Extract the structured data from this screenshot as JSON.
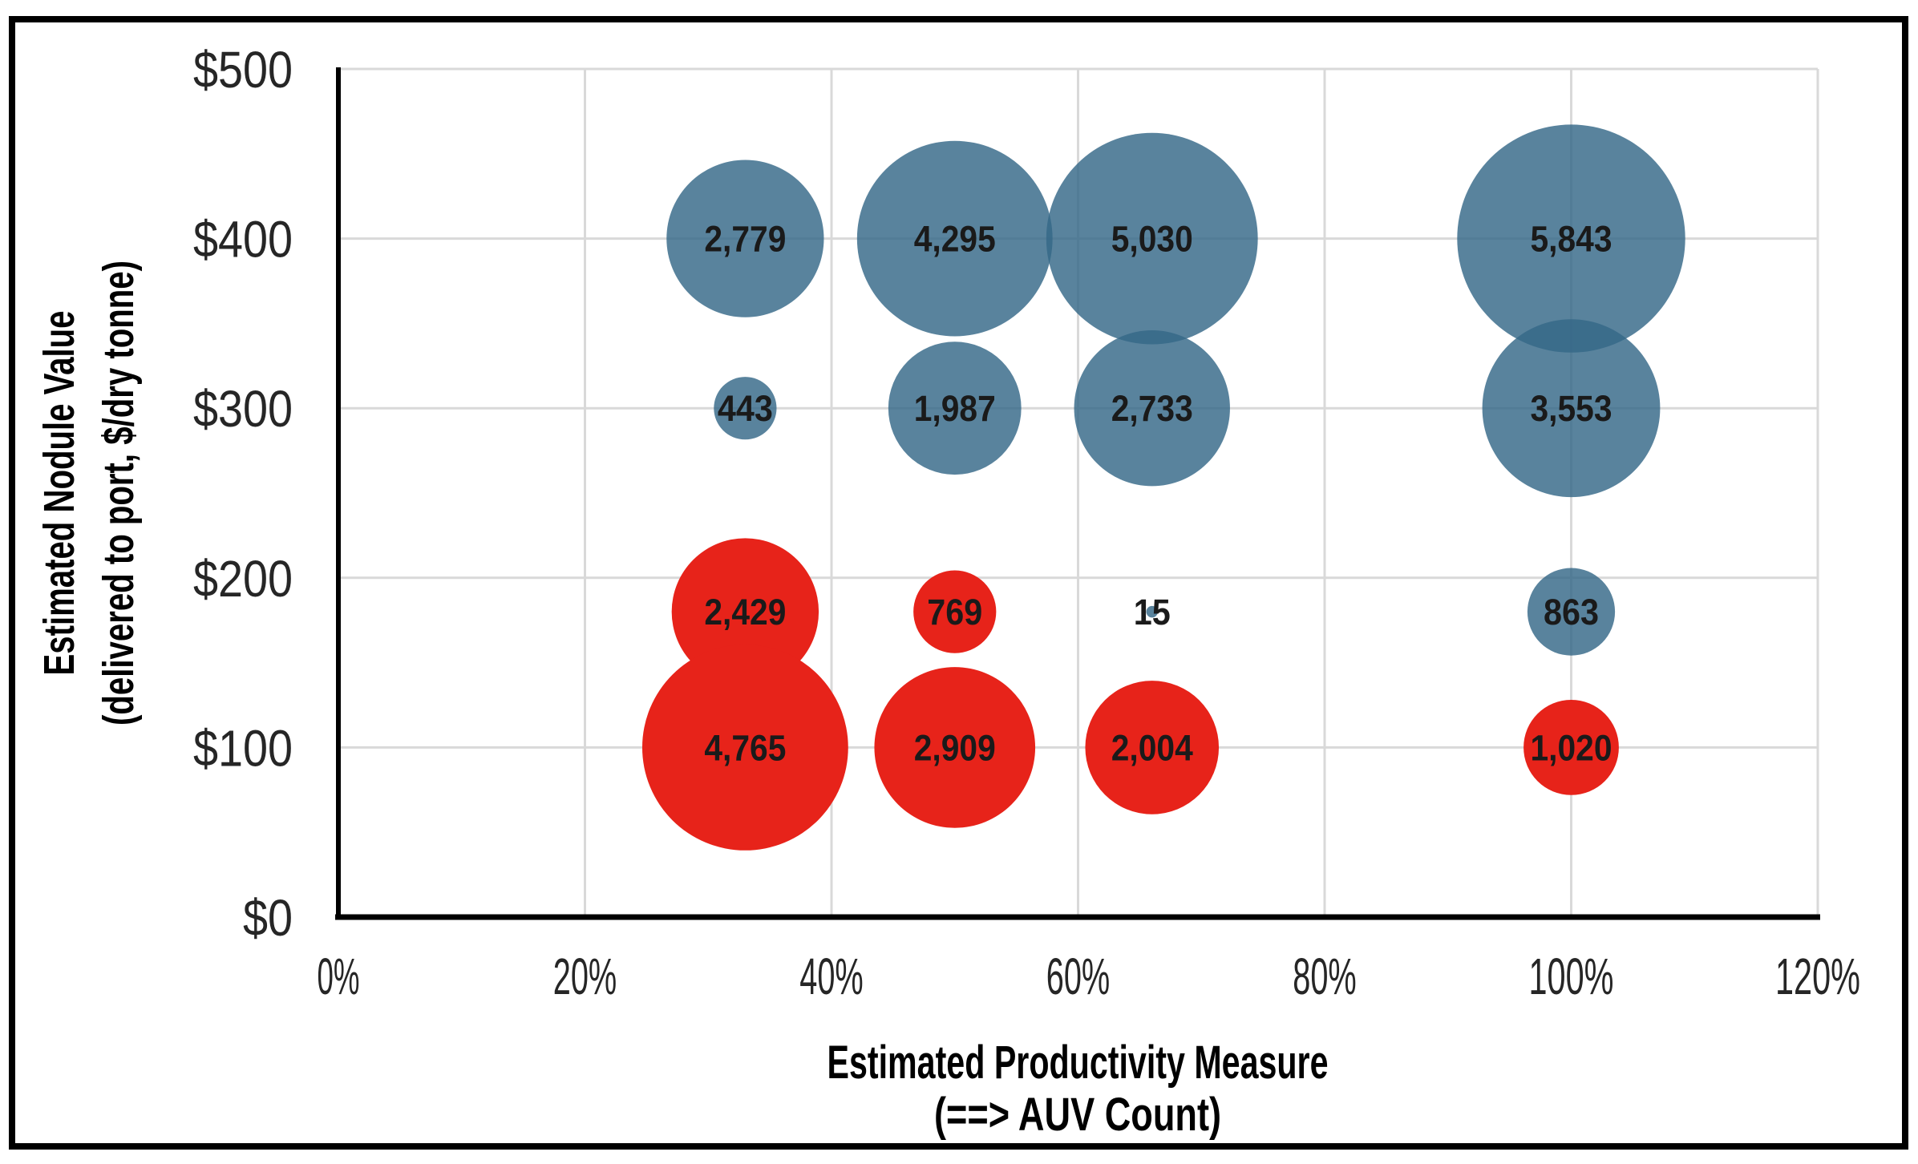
{
  "window": {
    "background": "#FFFFFF",
    "frame_color": "#000000"
  },
  "colors": {
    "blue_series": "#356888",
    "blue_series_apparent": "#5E88A1",
    "blue_fill_opacity": 0.82,
    "red_series": "#E7231A",
    "gridline": "#D9D9D9",
    "axis_line": "#000000",
    "bubble_label": "#1A1A1A",
    "tick_label": "#262626",
    "background": "#FFFFFF"
  },
  "chart_data": {
    "type": "scatter",
    "subtype": "bubble",
    "title": "",
    "xlabel_line1": "Estimated Productivity Measure",
    "xlabel_line2": "(==> AUV Count)",
    "ylabel_line1": "Estimated Nodule Value",
    "ylabel_line2": "(delivered to port, $/dry tonne)",
    "xlim": [
      0,
      120
    ],
    "ylim": [
      0,
      500
    ],
    "grid": true,
    "legend": "none",
    "x_tick_values": [
      0,
      20,
      40,
      60,
      80,
      100,
      120
    ],
    "x_tick_labels": [
      "0%",
      "20%",
      "40%",
      "60%",
      "80%",
      "100%",
      "120%"
    ],
    "y_tick_values": [
      0,
      100,
      200,
      300,
      400,
      500
    ],
    "y_tick_labels": [
      "$0",
      "$100",
      "$200",
      "$300",
      "$400",
      "$500"
    ],
    "bubble_size_rule": "area proportional to value",
    "series": [
      {
        "name": "blue-series",
        "color": "#356888",
        "fill_opacity": 0.82,
        "points": [
          {
            "x": 33,
            "y": 400,
            "value": 2779,
            "label": "2,779"
          },
          {
            "x": 50,
            "y": 400,
            "value": 4295,
            "label": "4,295"
          },
          {
            "x": 66,
            "y": 400,
            "value": 5030,
            "label": "5,030"
          },
          {
            "x": 100,
            "y": 400,
            "value": 5843,
            "label": "5,843"
          },
          {
            "x": 33,
            "y": 300,
            "value": 443,
            "label": "443"
          },
          {
            "x": 50,
            "y": 300,
            "value": 1987,
            "label": "1,987"
          },
          {
            "x": 66,
            "y": 300,
            "value": 2733,
            "label": "2,733"
          },
          {
            "x": 100,
            "y": 300,
            "value": 3553,
            "label": "3,553"
          },
          {
            "x": 66,
            "y": 180,
            "value": 15,
            "label": "15"
          },
          {
            "x": 100,
            "y": 180,
            "value": 863,
            "label": "863"
          }
        ]
      },
      {
        "name": "red-series",
        "color": "#E7231A",
        "fill_opacity": 1,
        "points": [
          {
            "x": 33,
            "y": 180,
            "value": 2429,
            "label": "2,429"
          },
          {
            "x": 50,
            "y": 180,
            "value": 769,
            "label": "769"
          },
          {
            "x": 33,
            "y": 100,
            "value": 4765,
            "label": "4,765"
          },
          {
            "x": 50,
            "y": 100,
            "value": 2909,
            "label": "2,909"
          },
          {
            "x": 66,
            "y": 100,
            "value": 2004,
            "label": "2,004"
          },
          {
            "x": 100,
            "y": 100,
            "value": 1020,
            "label": "1,020"
          }
        ]
      }
    ]
  }
}
